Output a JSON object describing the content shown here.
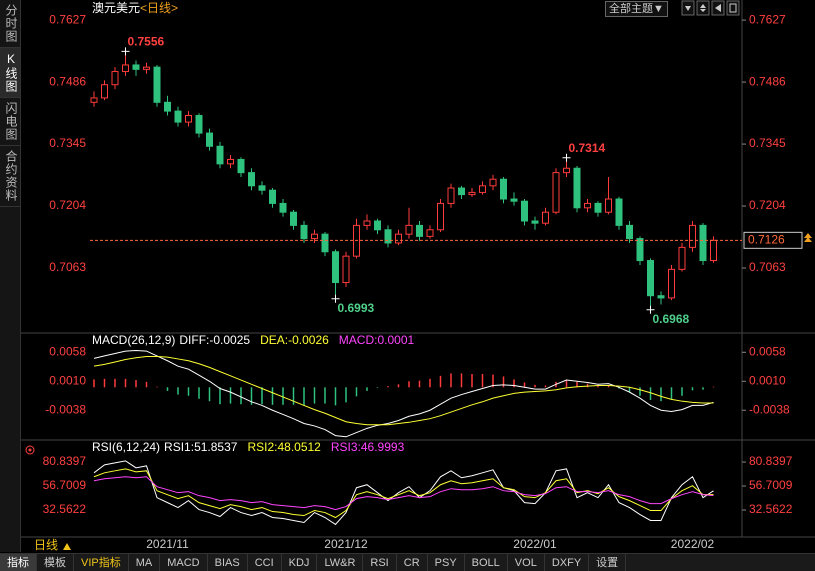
{
  "chart_data": [
    {
      "type": "candlestick",
      "title": "澳元美元",
      "subtitle": "<日线>",
      "categories": [
        null,
        null,
        null,
        null,
        null,
        null,
        null,
        "2021/11",
        null,
        null,
        null,
        null,
        null,
        null,
        null,
        null,
        null,
        null,
        null,
        null,
        null,
        null,
        null,
        null,
        "2021/12",
        null,
        null,
        null,
        null,
        null,
        null,
        null,
        null,
        null,
        null,
        null,
        null,
        null,
        null,
        null,
        null,
        null,
        "2022/01",
        null,
        null,
        null,
        null,
        null,
        null,
        null,
        null,
        null,
        null,
        null,
        null,
        null,
        null,
        "2022/02",
        null,
        null
      ],
      "ohlc": [
        [
          0.744,
          0.7465,
          0.743,
          0.745
        ],
        [
          0.745,
          0.749,
          0.7445,
          0.748
        ],
        [
          0.748,
          0.752,
          0.747,
          0.751
        ],
        [
          0.751,
          0.7556,
          0.75,
          0.7525
        ],
        [
          0.7525,
          0.7535,
          0.75,
          0.7515
        ],
        [
          0.7515,
          0.753,
          0.7505,
          0.752
        ],
        [
          0.752,
          0.7525,
          0.743,
          0.744
        ],
        [
          0.744,
          0.7455,
          0.741,
          0.742
        ],
        [
          0.742,
          0.743,
          0.7385,
          0.7395
        ],
        [
          0.7395,
          0.742,
          0.7385,
          0.741
        ],
        [
          0.741,
          0.7415,
          0.736,
          0.737
        ],
        [
          0.737,
          0.738,
          0.733,
          0.734
        ],
        [
          0.734,
          0.735,
          0.729,
          0.73
        ],
        [
          0.73,
          0.732,
          0.729,
          0.731
        ],
        [
          0.731,
          0.7315,
          0.727,
          0.728
        ],
        [
          0.728,
          0.729,
          0.724,
          0.725
        ],
        [
          0.725,
          0.726,
          0.723,
          0.724
        ],
        [
          0.724,
          0.7245,
          0.72,
          0.721
        ],
        [
          0.721,
          0.722,
          0.718,
          0.719
        ],
        [
          0.719,
          0.7195,
          0.715,
          0.716
        ],
        [
          0.716,
          0.717,
          0.712,
          0.713
        ],
        [
          0.713,
          0.715,
          0.712,
          0.714
        ],
        [
          0.714,
          0.7145,
          0.709,
          0.71
        ],
        [
          0.71,
          0.7105,
          0.6993,
          0.703
        ],
        [
          0.703,
          0.71,
          0.702,
          0.709
        ],
        [
          0.709,
          0.7175,
          0.7085,
          0.716
        ],
        [
          0.716,
          0.7185,
          0.715,
          0.717
        ],
        [
          0.717,
          0.7175,
          0.714,
          0.715
        ],
        [
          0.715,
          0.716,
          0.711,
          0.712
        ],
        [
          0.712,
          0.715,
          0.7115,
          0.714
        ],
        [
          0.714,
          0.72,
          0.713,
          0.716
        ],
        [
          0.716,
          0.717,
          0.7125,
          0.7135
        ],
        [
          0.7135,
          0.716,
          0.713,
          0.715
        ],
        [
          0.715,
          0.722,
          0.7145,
          0.721
        ],
        [
          0.721,
          0.7255,
          0.72,
          0.7245
        ],
        [
          0.7245,
          0.725,
          0.722,
          0.723
        ],
        [
          0.723,
          0.7245,
          0.7225,
          0.7235
        ],
        [
          0.7235,
          0.726,
          0.723,
          0.725
        ],
        [
          0.725,
          0.7275,
          0.724,
          0.7265
        ],
        [
          0.7265,
          0.727,
          0.721,
          0.722
        ],
        [
          0.722,
          0.7235,
          0.7205,
          0.7215
        ],
        [
          0.7215,
          0.722,
          0.716,
          0.717
        ],
        [
          0.717,
          0.718,
          0.715,
          0.7165
        ],
        [
          0.7165,
          0.72,
          0.716,
          0.719
        ],
        [
          0.719,
          0.729,
          0.7185,
          0.728
        ],
        [
          0.728,
          0.7314,
          0.727,
          0.729
        ],
        [
          0.729,
          0.7295,
          0.719,
          0.72
        ],
        [
          0.72,
          0.722,
          0.719,
          0.721
        ],
        [
          0.721,
          0.7215,
          0.718,
          0.719
        ],
        [
          0.719,
          0.727,
          0.7185,
          0.722
        ],
        [
          0.722,
          0.7225,
          0.715,
          0.716
        ],
        [
          0.716,
          0.717,
          0.712,
          0.713
        ],
        [
          0.713,
          0.7135,
          0.707,
          0.708
        ],
        [
          0.708,
          0.7085,
          0.6968,
          0.7
        ],
        [
          0.7,
          0.701,
          0.698,
          0.6995
        ],
        [
          0.6995,
          0.707,
          0.699,
          0.706
        ],
        [
          0.706,
          0.712,
          0.7055,
          0.711
        ],
        [
          0.711,
          0.717,
          0.71,
          0.716
        ],
        [
          0.716,
          0.7165,
          0.707,
          0.708
        ],
        [
          0.708,
          0.7135,
          0.7075,
          0.7126
        ]
      ],
      "up_color": "#ff3b3b",
      "down_color": "#2ec27e",
      "axis_color": "#ff4040",
      "ylim": [
        0.6922,
        0.765
      ],
      "yticks": [
        0.7063,
        0.7204,
        0.7345,
        0.7486,
        0.7627
      ],
      "annotations": [
        {
          "text": "0.7556",
          "candle": 3,
          "at": "high",
          "color": "#ff4040"
        },
        {
          "text": "0.7314",
          "candle": 45,
          "at": "high",
          "color": "#ff4040"
        },
        {
          "text": "0.6993",
          "candle": 23,
          "at": "low",
          "color": "#4fd18b"
        },
        {
          "text": "0.6968",
          "candle": 53,
          "at": "low",
          "color": "#4fd18b"
        }
      ],
      "last_price_color": "#ff6a3d"
    },
    {
      "type": "line",
      "title": "MACD(26,12,9)",
      "axis_color": "#ff4040",
      "ylim": [
        -0.0084,
        0.0085
      ],
      "yticks": [
        0.0058,
        {
          "value": 0.001,
          "label": "0.0010"
        },
        -0.0038
      ],
      "series": [
        {
          "name": "DIFF:",
          "kind": "line",
          "color": "#ffffff",
          "values": [
            0.0048,
            0.0052,
            0.0056,
            0.006,
            0.0061,
            0.006,
            0.0052,
            0.0044,
            0.0035,
            0.003,
            0.002,
            0.001,
            -0.0002,
            -0.0008,
            -0.0016,
            -0.0024,
            -0.003,
            -0.0038,
            -0.0045,
            -0.0052,
            -0.006,
            -0.0064,
            -0.007,
            -0.008,
            -0.0082,
            -0.0075,
            -0.0068,
            -0.0063,
            -0.006,
            -0.0055,
            -0.0048,
            -0.0044,
            -0.0038,
            -0.0028,
            -0.0018,
            -0.0012,
            -0.0007,
            -0.0002,
            0.0003,
            0.0004,
            0.0003,
            0.0,
            -0.0003,
            -0.0003,
            0.0005,
            0.0012,
            0.001,
            0.0008,
            0.0005,
            0.0006,
            0.0,
            -0.0008,
            -0.0018,
            -0.003,
            -0.0038,
            -0.004,
            -0.0037,
            -0.003,
            -0.003,
            -0.0025
          ]
        },
        {
          "name": "DEA:",
          "kind": "line",
          "color": "#ffff33",
          "values": [
            0.0035,
            0.0038,
            0.0042,
            0.0046,
            0.0049,
            0.0051,
            0.0051,
            0.005,
            0.0047,
            0.0044,
            0.0039,
            0.0033,
            0.0026,
            0.0019,
            0.0012,
            0.0005,
            -0.0002,
            -0.0009,
            -0.0016,
            -0.0023,
            -0.003,
            -0.0037,
            -0.0043,
            -0.005,
            -0.0057,
            -0.006,
            -0.0062,
            -0.0062,
            -0.0062,
            -0.006,
            -0.0058,
            -0.0055,
            -0.0052,
            -0.0047,
            -0.0041,
            -0.0035,
            -0.0029,
            -0.0024,
            -0.0018,
            -0.0014,
            -0.001,
            -0.0008,
            -0.0007,
            -0.0006,
            -0.0004,
            -0.0001,
            0.0001,
            0.0002,
            0.0003,
            0.0003,
            0.0002,
            0.0,
            -0.0004,
            -0.0009,
            -0.0015,
            -0.002,
            -0.0023,
            -0.0025,
            -0.0026,
            -0.0026
          ]
        },
        {
          "name": "MACD:",
          "kind": "bar",
          "color": "#ff44ff",
          "up_color": "#ff3b3b",
          "down_color": "#2ec27e",
          "values": [
            0.0013,
            0.0014,
            0.0014,
            0.0014,
            0.0012,
            0.0009,
            0.0001,
            -0.0006,
            -0.0012,
            -0.0014,
            -0.0019,
            -0.0023,
            -0.0028,
            -0.0027,
            -0.0028,
            -0.0029,
            -0.0028,
            -0.0029,
            -0.0029,
            -0.0029,
            -0.003,
            -0.0027,
            -0.0027,
            -0.003,
            -0.0025,
            -0.0015,
            -0.0006,
            -0.0001,
            0.0002,
            0.0005,
            0.001,
            0.0011,
            0.0014,
            0.0019,
            0.0023,
            0.0023,
            0.0022,
            0.0022,
            0.0021,
            0.0018,
            0.0013,
            0.0008,
            0.0004,
            0.0003,
            0.0009,
            0.0013,
            0.0009,
            0.0006,
            0.0002,
            0.0003,
            -0.0002,
            -0.0008,
            -0.0014,
            -0.0021,
            -0.0023,
            -0.002,
            -0.0014,
            -0.0005,
            -0.0004,
            0.0001
          ]
        }
      ]
    },
    {
      "type": "line",
      "title": "RSI(6,12,24)",
      "axis_color": "#ff4040",
      "ylim": [
        7.4,
        100
      ],
      "yticks": [
        80.8397,
        56.7009,
        32.5622
      ],
      "series": [
        {
          "name": "RSI1:",
          "kind": "line",
          "color": "#ffffff",
          "values": [
            70,
            78,
            80,
            82,
            75,
            77,
            45,
            40,
            35,
            42,
            33,
            30,
            26,
            35,
            30,
            27,
            30,
            25,
            24,
            22,
            20,
            30,
            25,
            18,
            30,
            55,
            58,
            50,
            42,
            50,
            56,
            45,
            52,
            66,
            72,
            65,
            67,
            70,
            73,
            55,
            52,
            40,
            39,
            50,
            72,
            74,
            45,
            50,
            45,
            58,
            40,
            35,
            28,
            22,
            22,
            45,
            58,
            66,
            45,
            51.8537
          ]
        },
        {
          "name": "RSI2:",
          "kind": "line",
          "color": "#ffff33",
          "values": [
            66,
            70,
            72,
            74,
            71,
            72,
            52,
            48,
            44,
            47,
            40,
            37,
            34,
            38,
            36,
            33,
            35,
            31,
            30,
            28,
            27,
            32,
            30,
            25,
            32,
            48,
            51,
            48,
            44,
            48,
            52,
            47,
            50,
            58,
            62,
            59,
            60,
            62,
            64,
            55,
            53,
            46,
            45,
            50,
            62,
            64,
            50,
            52,
            49,
            55,
            46,
            42,
            37,
            32,
            32,
            44,
            52,
            57,
            48,
            48.0512
          ]
        },
        {
          "name": "RSI3:",
          "kind": "line",
          "color": "#ff44ff",
          "values": [
            62,
            64,
            65,
            66,
            65,
            66,
            56,
            53,
            50,
            51,
            47,
            45,
            42,
            43,
            42,
            40,
            41,
            38,
            37,
            36,
            35,
            37,
            36,
            33,
            36,
            44,
            46,
            45,
            43,
            45,
            47,
            45,
            46,
            51,
            54,
            53,
            53,
            54,
            56,
            52,
            51,
            48,
            47,
            49,
            55,
            56,
            51,
            51,
            50,
            52,
            48,
            46,
            42,
            39,
            39,
            44,
            48,
            51,
            48,
            46.9993
          ]
        }
      ]
    }
  ],
  "sidebar": {
    "tabs": [
      "分时图",
      "K线图",
      "闪电图",
      "合约资料"
    ]
  },
  "toolbar": {
    "theme_button": "全部主题▼"
  },
  "period": "日线",
  "tabs": [
    "指标",
    "模板",
    "VIP指标",
    "MA",
    "MACD",
    "BIAS",
    "CCI",
    "KDJ",
    "LW&R",
    "RSI",
    "CR",
    "PSY",
    "BOLL",
    "VOL",
    "DXFY",
    "设置"
  ]
}
